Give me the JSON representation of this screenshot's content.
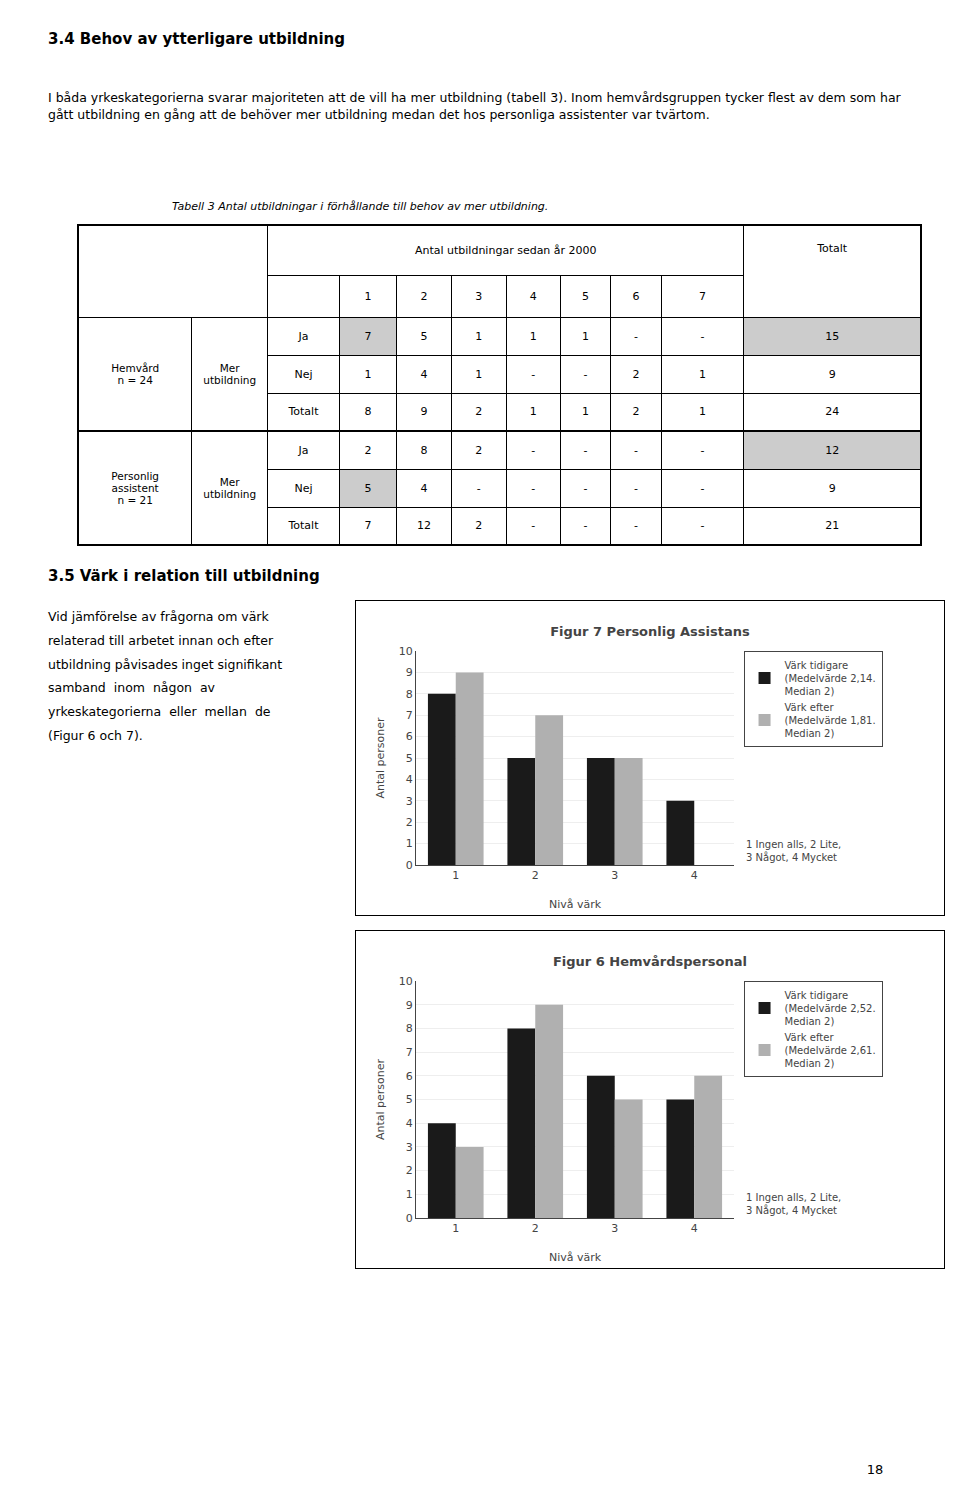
{
  "section_title": "3.4 Behov av ytterligare utbildning",
  "para1": "I båda yrkeskategorierna svarar majoriteten att de vill ha mer utbildning (tabell 3). Inom hemvårdsgruppen tycker flest av dem som har gått utbildning en gång att de behöver mer utbildning medan det hos personliga assistenter var tvärtom.",
  "table": {
    "caption": "Tabell 3 Antal utbildningar i förhållande till behov av mer utbildning.",
    "header_main": "Antal utbildningar sedan år 2000",
    "header_totalt": "Totalt",
    "col_nums": [
      "1",
      "2",
      "3",
      "4",
      "5",
      "6",
      "7"
    ],
    "rows": [
      {
        "group": "Hemvård\nn = 24",
        "subgroup": "Mer\nutbildning",
        "row_label": "Ja",
        "vals": [
          "7",
          "5",
          "1",
          "1",
          "1",
          "-",
          "-"
        ],
        "total": "15",
        "shade_val0": true,
        "shade_total": true
      },
      {
        "group": "",
        "subgroup": "",
        "row_label": "Nej",
        "vals": [
          "1",
          "4",
          "1",
          "-",
          "-",
          "2",
          "1"
        ],
        "total": "9",
        "shade_val0": false,
        "shade_total": false
      },
      {
        "group": "",
        "subgroup": "",
        "row_label": "Totalt",
        "vals": [
          "8",
          "9",
          "2",
          "1",
          "1",
          "2",
          "1"
        ],
        "total": "24",
        "shade_val0": false,
        "shade_total": false
      },
      {
        "group": "Personlig\nassistent\nn = 21",
        "subgroup": "Mer\nutbildning",
        "row_label": "Ja",
        "vals": [
          "2",
          "8",
          "2",
          "-",
          "-",
          "-",
          "-"
        ],
        "total": "12",
        "shade_val0": false,
        "shade_total": true
      },
      {
        "group": "",
        "subgroup": "",
        "row_label": "Nej",
        "vals": [
          "5",
          "4",
          "-",
          "-",
          "-",
          "-",
          "-"
        ],
        "total": "9",
        "shade_val0": true,
        "shade_total": false
      },
      {
        "group": "",
        "subgroup": "",
        "row_label": "Totalt",
        "vals": [
          "7",
          "12",
          "2",
          "-",
          "-",
          "-",
          "-"
        ],
        "total": "21",
        "shade_val0": false,
        "shade_total": false
      }
    ]
  },
  "section2_title": "3.5 Värk i relation till utbildning",
  "para2_lines": [
    "Vid jämförelse av frågorna om värk",
    "relaterad till arbetet innan och efter",
    "utbildning påvisades inget signifikant",
    "samband  inom  någon  av",
    "yrkeskategorierna  eller  mellan  de",
    "(Figur 6 och 7)."
  ],
  "page_number": "18",
  "chart_data": [
    {
      "type": "bar",
      "title": "Figur 7 Personlig Assistans",
      "x_label": "Nivå värk",
      "y_label": "Antal personer",
      "x": [
        1,
        2,
        3,
        4
      ],
      "xlim": [
        0.5,
        4.5
      ],
      "xticks": [
        1,
        2,
        3,
        4
      ],
      "ylim": [
        0,
        10
      ],
      "yticks": [
        0,
        1,
        2,
        3,
        4,
        5,
        6,
        7,
        8,
        9,
        10
      ],
      "grid": true,
      "legend": "right",
      "series": [
        {
          "name": "Värk tidigare\n(Medelvärde 2,14.\nMedian 2)",
          "color": "#1a1a1a",
          "values": [
            8,
            5,
            5,
            3
          ]
        },
        {
          "name": "Värk efter\n(Medelvärde 1,81.\nMedian 2)",
          "color": "#b0b0b0",
          "values": [
            9,
            7,
            5,
            0
          ]
        }
      ],
      "annotations": [
        "1 Ingen alls, 2 Lite,\n3 Något, 4 Mycket"
      ]
    },
    {
      "type": "bar",
      "title": "Figur 6 Hemvårdspersonal",
      "x_label": "Nivå värk",
      "y_label": "Antal personer",
      "x": [
        1,
        2,
        3,
        4
      ],
      "xlim": [
        0.5,
        4.5
      ],
      "xticks": [
        1,
        2,
        3,
        4
      ],
      "ylim": [
        0,
        10
      ],
      "yticks": [
        0,
        1,
        2,
        3,
        4,
        5,
        6,
        7,
        8,
        9,
        10
      ],
      "grid": true,
      "legend": "right",
      "series": [
        {
          "name": "Värk tidigare\n(Medelvärde 2,52.\nMedian 2)",
          "color": "#1a1a1a",
          "values": [
            4,
            8,
            6,
            5
          ]
        },
        {
          "name": "Värk efter\n(Medelvärde 2,61.\nMedian 2)",
          "color": "#b0b0b0",
          "values": [
            3,
            9,
            5,
            6
          ]
        }
      ],
      "annotations": [
        "1 Ingen alls, 2 Lite,\n3 Något, 4 Mycket"
      ]
    }
  ]
}
